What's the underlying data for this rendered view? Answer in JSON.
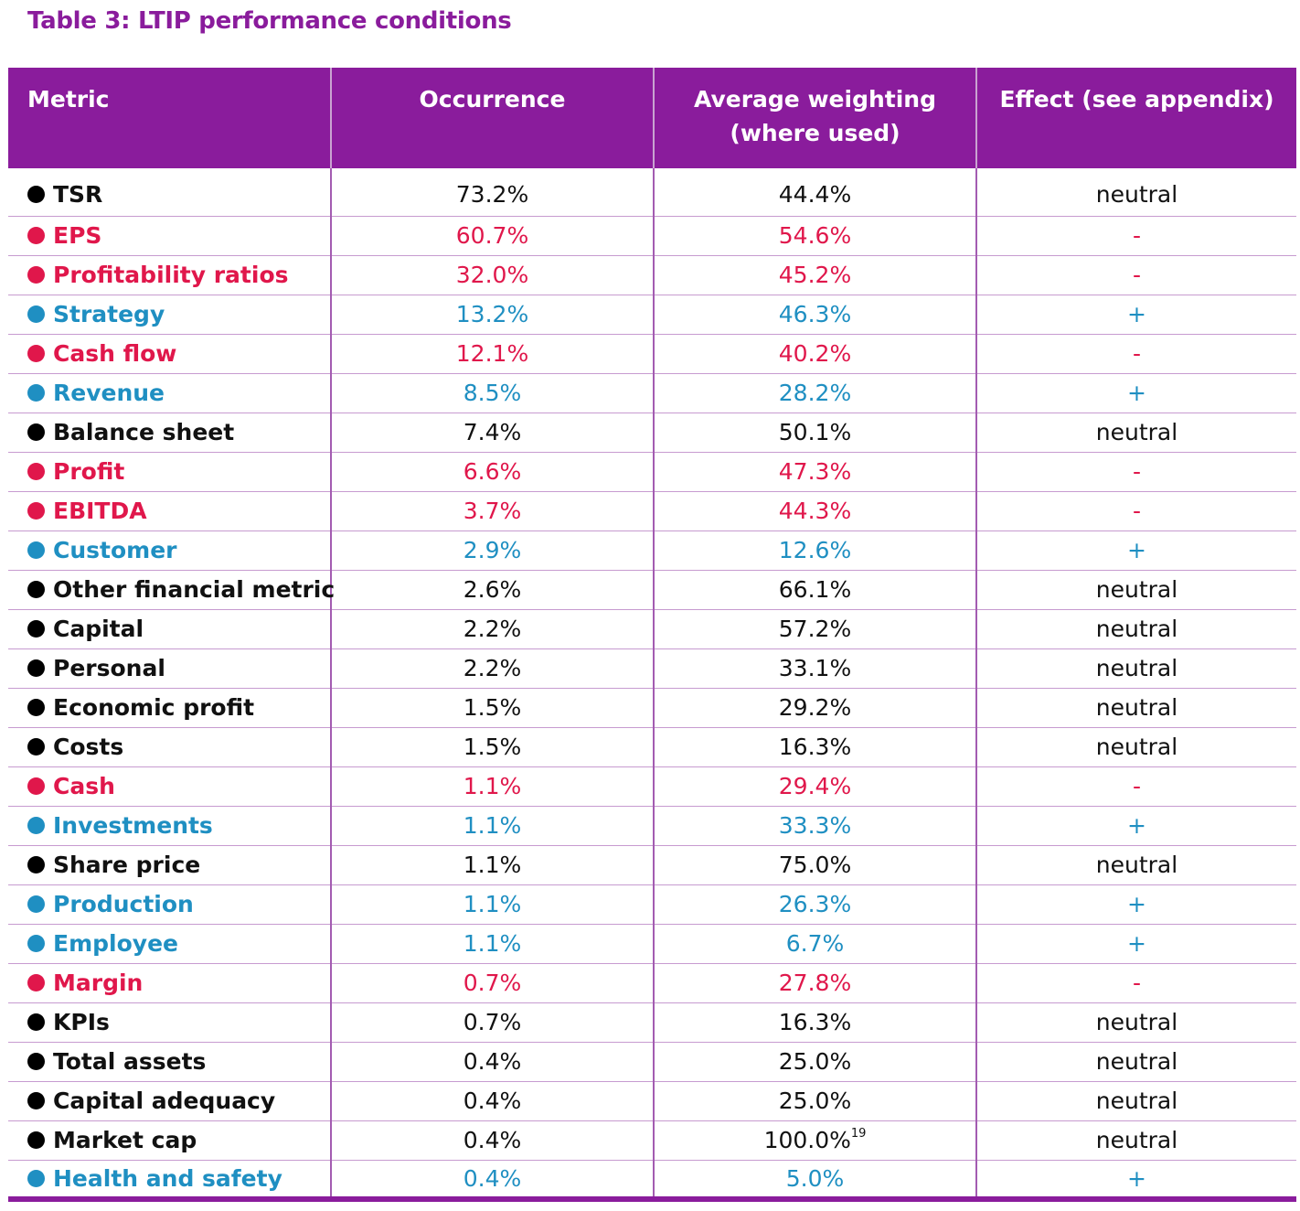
{
  "title": "Table 3: LTIP performance conditions",
  "headers": {
    "metric": "Metric",
    "occurrence": "Occurrence",
    "weighting_line1": "Average weighting",
    "weighting_line2": "(where used)",
    "effect": "Effect (see appendix)"
  },
  "colors": {
    "black": "#000000",
    "red": "#e0174b",
    "blue": "#1f8fc2",
    "header": "#8a1c9c"
  },
  "rows": [
    {
      "metric": "TSR",
      "occurrence": "73.2%",
      "weighting": "44.4%",
      "sup": "",
      "effect": "neutral",
      "kind": "black"
    },
    {
      "metric": "EPS",
      "occurrence": "60.7%",
      "weighting": "54.6%",
      "sup": "",
      "effect": "-",
      "kind": "red"
    },
    {
      "metric": "Profitability ratios",
      "occurrence": "32.0%",
      "weighting": "45.2%",
      "sup": "",
      "effect": "-",
      "kind": "red"
    },
    {
      "metric": "Strategy",
      "occurrence": "13.2%",
      "weighting": "46.3%",
      "sup": "",
      "effect": "+",
      "kind": "blue"
    },
    {
      "metric": "Cash flow",
      "occurrence": "12.1%",
      "weighting": "40.2%",
      "sup": "",
      "effect": "-",
      "kind": "red"
    },
    {
      "metric": "Revenue",
      "occurrence": "8.5%",
      "weighting": "28.2%",
      "sup": "",
      "effect": "+",
      "kind": "blue"
    },
    {
      "metric": "Balance sheet",
      "occurrence": "7.4%",
      "weighting": "50.1%",
      "sup": "",
      "effect": "neutral",
      "kind": "black"
    },
    {
      "metric": "Profit",
      "occurrence": "6.6%",
      "weighting": "47.3%",
      "sup": "",
      "effect": "-",
      "kind": "red"
    },
    {
      "metric": "EBITDA",
      "occurrence": "3.7%",
      "weighting": "44.3%",
      "sup": "",
      "effect": "-",
      "kind": "red"
    },
    {
      "metric": "Customer",
      "occurrence": "2.9%",
      "weighting": "12.6%",
      "sup": "",
      "effect": "+",
      "kind": "blue"
    },
    {
      "metric": "Other financial metric",
      "occurrence": "2.6%",
      "weighting": "66.1%",
      "sup": "",
      "effect": "neutral",
      "kind": "black"
    },
    {
      "metric": "Capital",
      "occurrence": "2.2%",
      "weighting": "57.2%",
      "sup": "",
      "effect": "neutral",
      "kind": "black"
    },
    {
      "metric": "Personal",
      "occurrence": "2.2%",
      "weighting": "33.1%",
      "sup": "",
      "effect": "neutral",
      "kind": "black"
    },
    {
      "metric": "Economic profit",
      "occurrence": "1.5%",
      "weighting": "29.2%",
      "sup": "",
      "effect": "neutral",
      "kind": "black"
    },
    {
      "metric": "Costs",
      "occurrence": "1.5%",
      "weighting": "16.3%",
      "sup": "",
      "effect": "neutral",
      "kind": "black"
    },
    {
      "metric": "Cash",
      "occurrence": "1.1%",
      "weighting": "29.4%",
      "sup": "",
      "effect": "-",
      "kind": "red"
    },
    {
      "metric": "Investments",
      "occurrence": "1.1%",
      "weighting": "33.3%",
      "sup": "",
      "effect": "+",
      "kind": "blue"
    },
    {
      "metric": "Share price",
      "occurrence": "1.1%",
      "weighting": "75.0%",
      "sup": "",
      "effect": "neutral",
      "kind": "black"
    },
    {
      "metric": "Production",
      "occurrence": "1.1%",
      "weighting": "26.3%",
      "sup": "",
      "effect": "+",
      "kind": "blue"
    },
    {
      "metric": "Employee",
      "occurrence": "1.1%",
      "weighting": "6.7%",
      "sup": "",
      "effect": "+",
      "kind": "blue"
    },
    {
      "metric": "Margin",
      "occurrence": "0.7%",
      "weighting": "27.8%",
      "sup": "",
      "effect": "-",
      "kind": "red"
    },
    {
      "metric": "KPIs",
      "occurrence": "0.7%",
      "weighting": "16.3%",
      "sup": "",
      "effect": "neutral",
      "kind": "black"
    },
    {
      "metric": "Total assets",
      "occurrence": "0.4%",
      "weighting": "25.0%",
      "sup": "",
      "effect": "neutral",
      "kind": "black"
    },
    {
      "metric": "Capital adequacy",
      "occurrence": "0.4%",
      "weighting": "25.0%",
      "sup": "",
      "effect": "neutral",
      "kind": "black"
    },
    {
      "metric": "Market cap",
      "occurrence": "0.4%",
      "weighting": "100.0%",
      "sup": "19",
      "effect": "neutral",
      "kind": "black"
    },
    {
      "metric": "Health and safety",
      "occurrence": "0.4%",
      "weighting": "5.0%",
      "sup": "",
      "effect": "+",
      "kind": "blue"
    }
  ]
}
